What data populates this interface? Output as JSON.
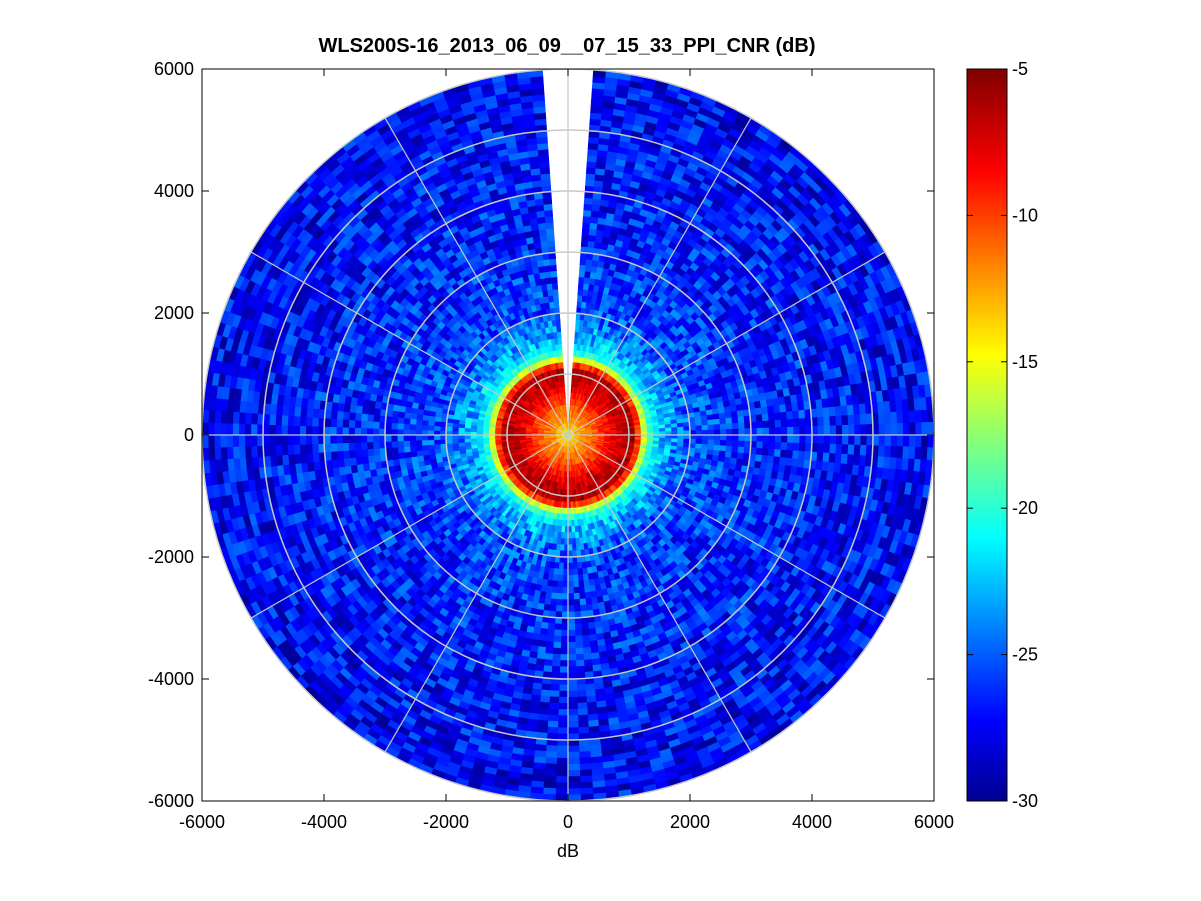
{
  "chart_data": {
    "type": "heatmap",
    "subtype": "polar-ppi",
    "title": "WLS200S-16_2013_06_09__07_15_33_PPI_CNR (dB)",
    "xlabel": "dB",
    "ylabel": "",
    "xlim": [
      -6000,
      6000
    ],
    "ylim": [
      -6000,
      6000
    ],
    "xticks": [
      -6000,
      -4000,
      -2000,
      0,
      2000,
      4000,
      6000
    ],
    "yticks": [
      -6000,
      -4000,
      -2000,
      0,
      2000,
      4000,
      6000
    ],
    "max_range": 6000,
    "range_rings": [
      1000,
      2000,
      3000,
      4000,
      5000,
      6000
    ],
    "spoke_angles_deg": [
      0,
      30,
      60,
      90,
      120,
      150,
      180,
      210,
      240,
      270,
      300,
      330
    ],
    "gap_azimuth_deg": [
      356,
      4
    ],
    "colorbar": {
      "label": "",
      "min": -30,
      "max": -5,
      "ticks": [
        -30,
        -25,
        -20,
        -15,
        -10,
        -5
      ],
      "colormap": "jet"
    },
    "radial_profile": [
      {
        "range": 0,
        "cnr": -15
      },
      {
        "range": 200,
        "cnr": -12
      },
      {
        "range": 500,
        "cnr": -10
      },
      {
        "range": 800,
        "cnr": -7
      },
      {
        "range": 1100,
        "cnr": -6
      },
      {
        "range": 1300,
        "cnr": -19
      },
      {
        "range": 1500,
        "cnr": -22
      },
      {
        "range": 2000,
        "cnr": -25
      },
      {
        "range": 3000,
        "cnr": -26
      },
      {
        "range": 6000,
        "cnr": -27
      }
    ],
    "grid": true,
    "colors": {
      "grid_line": "#c8c8c8",
      "axis": "#000000",
      "background": "#ffffff"
    }
  }
}
